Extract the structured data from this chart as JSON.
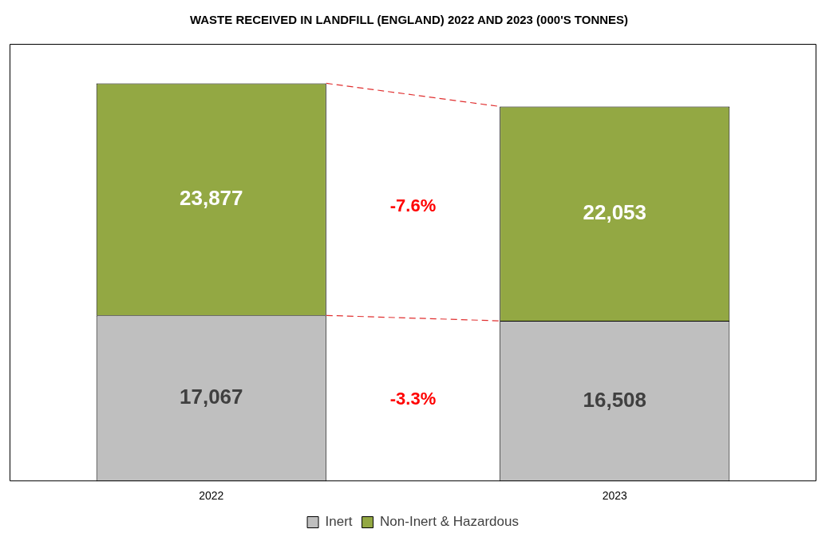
{
  "chart_data": {
    "type": "bar",
    "title": "WASTE RECEIVED IN LANDFILL (ENGLAND) 2022 AND 2023 (000'S TONNES)",
    "categories": [
      "2022",
      "2023"
    ],
    "stacked": true,
    "grid": false,
    "legend": "bottom",
    "series": [
      {
        "name": "Inert",
        "color": "#bfbfbf",
        "values": [
          17067,
          16508
        ],
        "value_labels": [
          "17,067",
          "16,508"
        ]
      },
      {
        "name": "Non-Inert & Hazardous",
        "color": "#93a843",
        "values": [
          23877,
          22053
        ],
        "value_labels": [
          "23,877",
          "22,053"
        ]
      }
    ],
    "annotations": [
      "-3.3%",
      "-7.6%"
    ]
  }
}
